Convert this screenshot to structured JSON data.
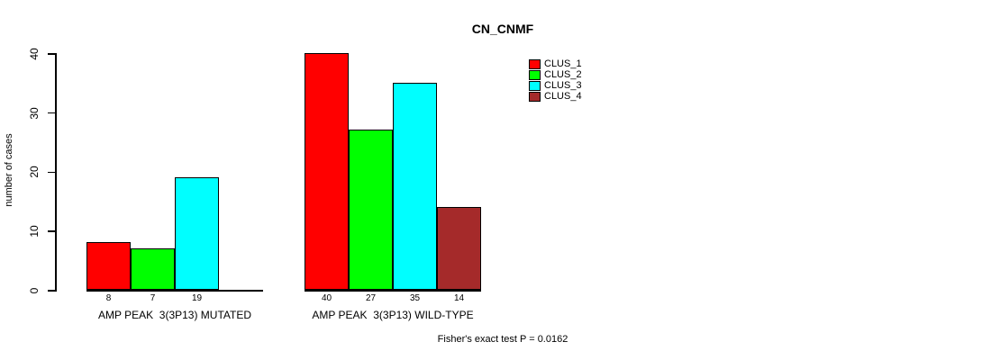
{
  "chart_data": {
    "type": "bar",
    "title": "CN_CNMF",
    "ylabel": "number of cases",
    "xlabel": "",
    "ylim": [
      0,
      40
    ],
    "yticks": [
      0,
      10,
      20,
      30,
      40
    ],
    "grid": false,
    "legend_position": "top-right-outside-plot",
    "categories": [
      "AMP PEAK  3(3P13) MUTATED",
      "AMP PEAK  3(3P13) WILD-TYPE"
    ],
    "series": [
      {
        "name": "CLUS_1",
        "color": "#FF0000",
        "values": [
          8,
          40
        ]
      },
      {
        "name": "CLUS_2",
        "color": "#00FF00",
        "values": [
          7,
          27
        ]
      },
      {
        "name": "CLUS_3",
        "color": "#00FFFF",
        "values": [
          19,
          35
        ]
      },
      {
        "name": "CLUS_4",
        "color": "#A52A2A",
        "values": [
          0,
          14
        ]
      }
    ],
    "bar_value_labels": [
      [
        "8",
        "7",
        "19",
        ""
      ],
      [
        "40",
        "27",
        "35",
        "14"
      ]
    ],
    "annotation": "Fisher's exact test P = 0.0162",
    "colors": {
      "axis": "#000000",
      "background": "#FFFFFF",
      "text": "#000000"
    }
  }
}
